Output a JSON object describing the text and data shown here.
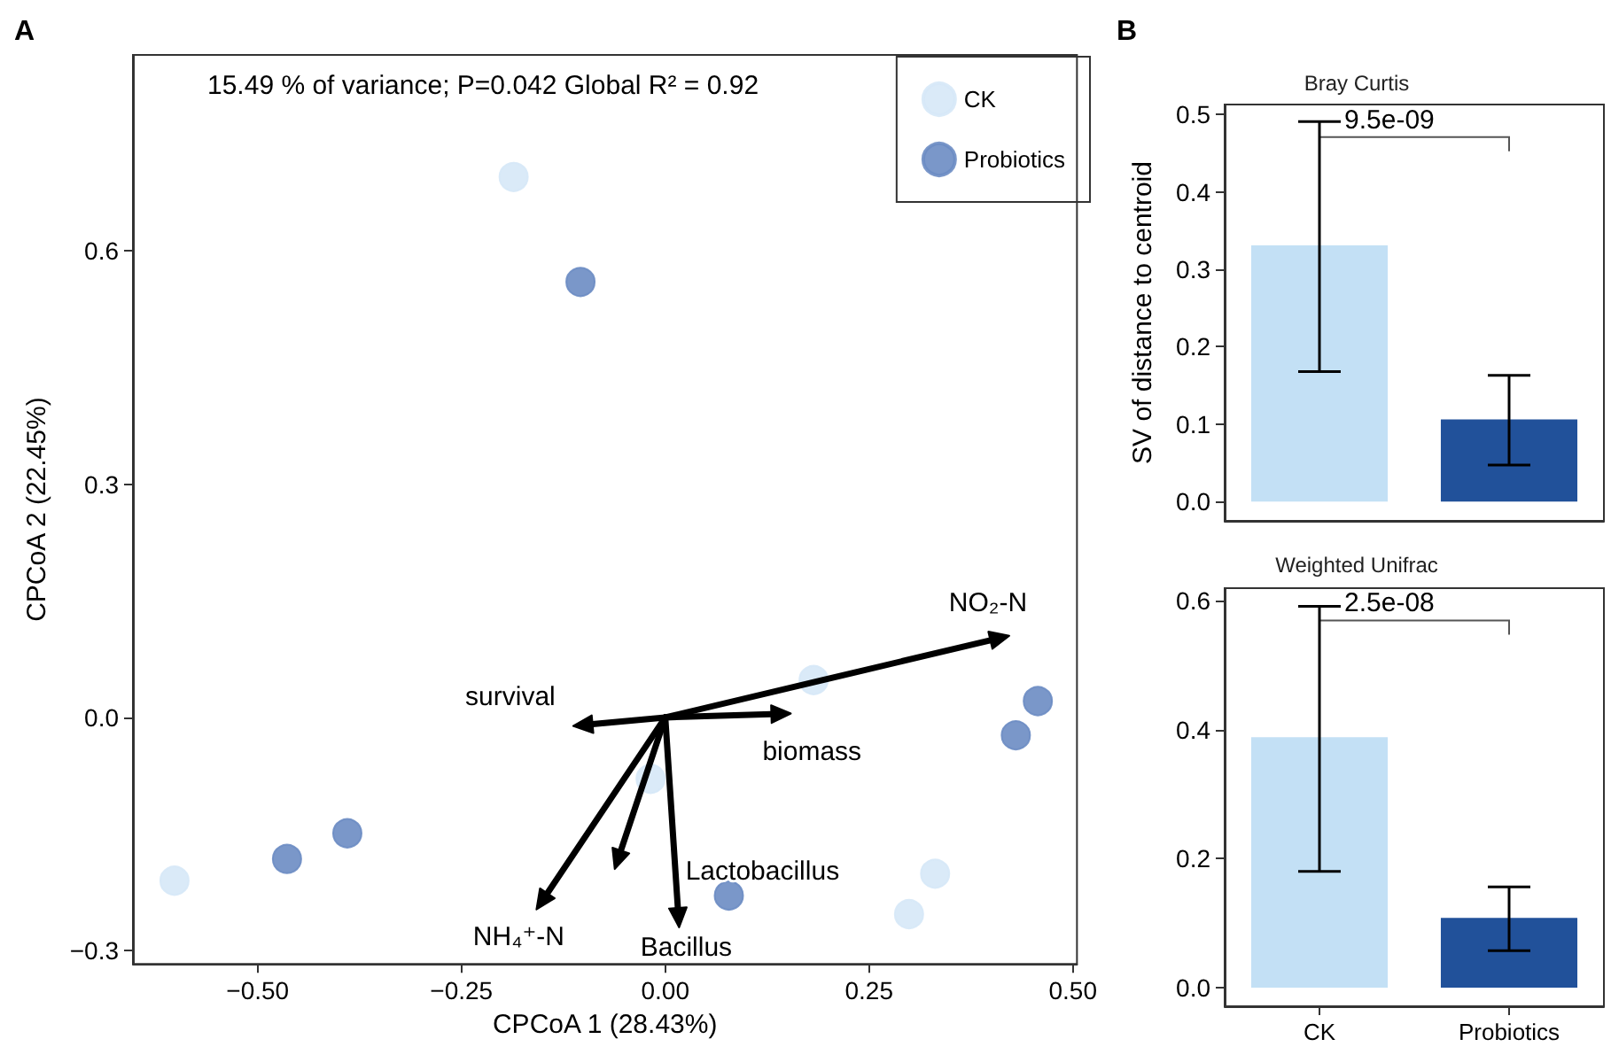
{
  "chart_data": [
    {
      "type": "scatter",
      "title": "15.49 % of variance; P=0.042 Global R² = 0.92",
      "xlabel": "CPCoA 1 (28.43%)",
      "ylabel": "CPCoA 2 (22.45%)",
      "annotations": [
        "A",
        "NO₂-N",
        "survival",
        "biomass",
        "NH₄⁺-N",
        "Lactobacillus",
        "Bacillus"
      ],
      "xlim": [
        -0.653,
        0.505
      ],
      "ylim": [
        -0.317,
        0.852
      ],
      "xticks": [
        {
          "value": -0.5,
          "label": "−0.50"
        },
        {
          "value": -0.25,
          "label": "−0.25"
        },
        {
          "value": 0,
          "label": "0.00"
        },
        {
          "value": 0.25,
          "label": "0.25"
        },
        {
          "value": 0.5,
          "label": "0.50"
        }
      ],
      "yticks": [
        {
          "value": -0.3,
          "label": "−0.3"
        },
        {
          "value": 0,
          "label": "0.0"
        },
        {
          "value": 0.3,
          "label": "0.3"
        },
        {
          "value": 0.6,
          "label": "0.6"
        }
      ],
      "grid": false,
      "legend": "top right",
      "marker": "circle",
      "series": [
        {
          "name": "CK",
          "color": "#d6e8f7",
          "x": [
            -0.186,
            0.182,
            -0.018,
            -0.602,
            0.331,
            0.299
          ],
          "values": [
            0.695,
            0.048,
            -0.079,
            -0.21,
            -0.201,
            -0.253
          ]
        },
        {
          "name": "Probiotics",
          "color": "#6b8cc3",
          "x": [
            -0.104,
            0.457,
            0.43,
            -0.39,
            -0.464,
            0.078
          ],
          "values": [
            0.56,
            0.021,
            -0.023,
            -0.149,
            -0.182,
            -0.229
          ]
        }
      ]
    },
    {
      "type": "bar",
      "title": "Bray Curtis",
      "ylabel": "SV of distance to centroid",
      "annotations": [
        "B",
        {
          "text": "9.5e-09",
          "x": "CK",
          "y": 0.471
        }
      ],
      "categories": [
        "CK",
        "Probiotics"
      ],
      "values": [
        0.331,
        0.106
      ],
      "colors": [
        "#c3e0f5",
        "#21519a"
      ],
      "errors": [
        [
          0.168,
          0.491
        ],
        [
          0.047,
          0.163
        ]
      ],
      "ylim": [
        -0.025,
        0.513
      ],
      "yticks": [
        {
          "value": 0,
          "label": "0.0"
        },
        {
          "value": 0.1,
          "label": "0.1"
        },
        {
          "value": 0.2,
          "label": "0.2"
        },
        {
          "value": 0.3,
          "label": "0.3"
        },
        {
          "value": 0.4,
          "label": "0.4"
        },
        {
          "value": 0.5,
          "label": "0.5"
        }
      ],
      "grid": false,
      "tick_labels": "y"
    },
    {
      "type": "bar",
      "title": "Weighted Unifrac",
      "annotations": [
        {
          "text": "2.5e-08",
          "x": "CK",
          "y": 0.569
        }
      ],
      "categories": [
        "CK",
        "Probiotics"
      ],
      "values": [
        0.388,
        0.108
      ],
      "colors": [
        "#c3e0f5",
        "#21519a"
      ],
      "errors": [
        [
          0.18,
          0.591
        ],
        [
          0.057,
          0.156
        ]
      ],
      "ylim": [
        -0.029,
        0.619
      ],
      "yticks": [
        {
          "value": 0,
          "label": "0.0"
        },
        {
          "value": 0.2,
          "label": "0.2"
        },
        {
          "value": 0.4,
          "label": "0.4"
        },
        {
          "value": 0.6,
          "label": "0.6"
        }
      ],
      "grid": false
    }
  ]
}
